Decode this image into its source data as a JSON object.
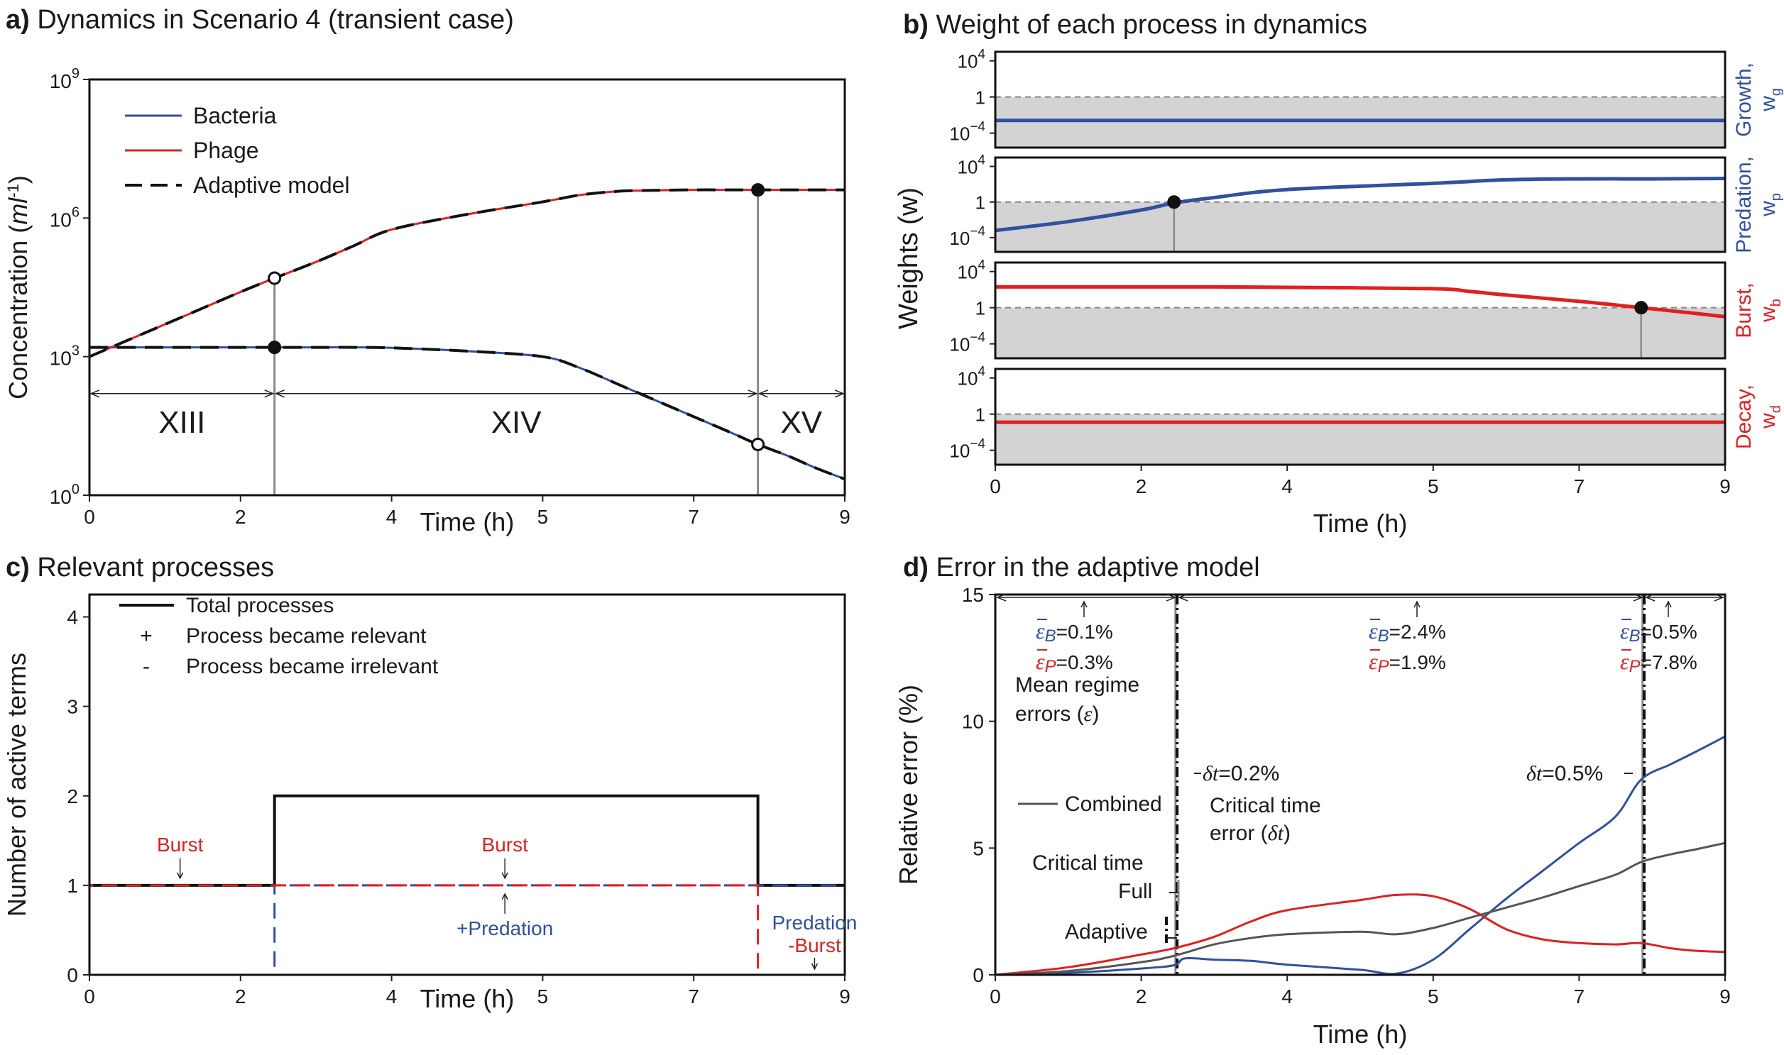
{
  "colors": {
    "bacteria": "#3050a0",
    "phage": "#e02020",
    "black": "#111111",
    "gray_line": "#555555",
    "shade": "#d3d3d3",
    "vline": "#8a8a8a"
  },
  "panels": {
    "a": {
      "letter": "a)",
      "title": "Dynamics in Scenario 4 (transient case)"
    },
    "b": {
      "letter": "b)",
      "title": "Weight of each process in dynamics"
    },
    "c": {
      "letter": "c)",
      "title": "Relevant processes"
    },
    "d": {
      "letter": "d)",
      "title": "Error in the adaptive model"
    }
  },
  "chart_data": [
    {
      "id": "a",
      "type": "line",
      "title": "Dynamics in Scenario 4 (transient case)",
      "xlabel": "Time (h)",
      "ylabel": "Concentration",
      "ylabel_unit": "ml",
      "ylabel_unit_exp": "-1",
      "y_scale": "log10",
      "xlim": [
        0,
        9
      ],
      "ylim_log10": [
        0,
        9
      ],
      "x_ticks": [
        0,
        2,
        4,
        5,
        7,
        9
      ],
      "y_ticks_log10": [
        0,
        3,
        6,
        9
      ],
      "y_tick_base": "10",
      "legend": [
        "Bacteria",
        "Phage",
        "Adaptive model"
      ],
      "series": [
        {
          "name": "Bacteria",
          "x": [
            0,
            0.5,
            1,
            1.5,
            2,
            2.45,
            3,
            3.5,
            4,
            4.5,
            5,
            5.5,
            6,
            6.5,
            7,
            7.5,
            7.85,
            8.25,
            8.6,
            9
          ],
          "log10_y": [
            3.2,
            3.2,
            3.2,
            3.2,
            3.2,
            3.2,
            3.2,
            3.2,
            3.19,
            3.12,
            3.0,
            2.75,
            2.4,
            2.05,
            1.7,
            1.35,
            1.1,
            0.85,
            0.6,
            0.35
          ]
        },
        {
          "name": "Phage",
          "x": [
            0,
            0.5,
            1,
            1.5,
            2,
            2.45,
            3,
            3.5,
            4,
            4.5,
            5,
            5.5,
            6,
            6.5,
            7,
            7.5,
            7.85,
            8.5,
            9
          ],
          "log10_y": [
            3.0,
            3.35,
            3.7,
            4.05,
            4.4,
            4.7,
            5.05,
            5.4,
            5.75,
            6.08,
            6.35,
            6.5,
            6.58,
            6.6,
            6.61,
            6.61,
            6.61,
            6.61,
            6.61
          ]
        }
      ],
      "markers": [
        {
          "x": 2.45,
          "log10_y": 4.7,
          "filled": false
        },
        {
          "x": 2.45,
          "log10_y": 3.2,
          "filled": true
        },
        {
          "x": 7.85,
          "log10_y": 6.61,
          "filled": true
        },
        {
          "x": 7.85,
          "log10_y": 1.1,
          "filled": false
        }
      ],
      "critical_times": [
        2.45,
        7.85
      ],
      "regimes": [
        {
          "label": "XIII",
          "start": 0,
          "end": 2.45
        },
        {
          "label": "XIV",
          "start": 2.45,
          "end": 7.85
        },
        {
          "label": "XV",
          "start": 7.85,
          "end": 9
        }
      ]
    },
    {
      "id": "b",
      "type": "line",
      "title": "Weight of each process in dynamics",
      "xlabel": "Time (h)",
      "ylabel": "Weights (w)",
      "y_scale": "log10",
      "xlim": [
        0,
        9
      ],
      "x_ticks": [
        0,
        2,
        4,
        5,
        7,
        9
      ],
      "y_tick_labels": [
        "10",
        "1",
        "10"
      ],
      "y_tick_exps": [
        "4",
        "",
        "−4"
      ],
      "subplots": [
        {
          "label": "Growth,",
          "symbol": "w",
          "subscript": "g",
          "color": "#3050a0",
          "x": [
            0,
            9
          ],
          "log10_y": [
            -2.6,
            -2.6
          ],
          "marker": null
        },
        {
          "label": "Predation,",
          "symbol": "w",
          "subscript": "p",
          "color": "#3050a0",
          "x": [
            0,
            1,
            2,
            2.45,
            3,
            4,
            5,
            6,
            7,
            8,
            9
          ],
          "log10_y": [
            -3.2,
            -2.2,
            -0.9,
            -0.1,
            0.5,
            1.4,
            2.1,
            2.5,
            2.6,
            2.6,
            2.65
          ],
          "marker": {
            "x": 2.45,
            "log10_y": 0
          }
        },
        {
          "label": "Burst,",
          "symbol": "w",
          "subscript": "b",
          "color": "#e02020",
          "x": [
            0,
            1,
            2,
            3,
            4,
            5,
            5.5,
            6,
            7,
            7.85,
            8.5,
            9
          ],
          "log10_y": [
            2.3,
            2.3,
            2.3,
            2.3,
            2.25,
            2.1,
            1.8,
            1.4,
            0.7,
            0.0,
            -0.55,
            -1.0
          ],
          "marker": {
            "x": 7.85,
            "log10_y": 0
          }
        },
        {
          "label": "Decay,",
          "symbol": "w",
          "subscript": "d",
          "color": "#e02020",
          "x": [
            0,
            9
          ],
          "log10_y": [
            -0.9,
            -0.9
          ],
          "marker": null
        }
      ],
      "threshold_log10": 0,
      "shaded_below_threshold": true
    },
    {
      "id": "c",
      "type": "line",
      "title": "Relevant processes",
      "xlabel": "Time (h)",
      "ylabel": "Number of active terms",
      "xlim": [
        0,
        9
      ],
      "ylim": [
        0,
        4
      ],
      "x_ticks": [
        0,
        2,
        4,
        5,
        7,
        9
      ],
      "y_ticks": [
        0,
        1,
        2,
        3,
        4
      ],
      "legend": [
        {
          "symbol": "",
          "label": "Total processes"
        },
        {
          "symbol": "+",
          "label": "Process became relevant"
        },
        {
          "symbol": "-",
          "label": "Process became irrelevant"
        }
      ],
      "series": [
        {
          "name": "Total processes",
          "x": [
            0,
            2.45,
            2.45,
            7.85,
            7.85,
            9
          ],
          "y": [
            1,
            1,
            2,
            2,
            1,
            1
          ]
        },
        {
          "name": "Bacteria",
          "x": [
            0,
            2.45,
            2.45,
            9
          ],
          "y": [
            0,
            0,
            1,
            1
          ]
        },
        {
          "name": "Phage",
          "x": [
            0,
            7.85,
            7.85,
            9
          ],
          "y": [
            1,
            1,
            0,
            0
          ]
        }
      ],
      "annotations": [
        {
          "lines": [
            "Burst"
          ],
          "x": 1.2,
          "y": 1.0,
          "color": "#e02020",
          "pos": "above"
        },
        {
          "lines": [
            "Burst"
          ],
          "x": 4.75,
          "y": 1.0,
          "color": "#e02020",
          "pos": "above"
        },
        {
          "lines": [
            "+Predation"
          ],
          "x": 4.75,
          "y": 1.0,
          "color": "#3050a0",
          "pos": "below"
        },
        {
          "lines": [
            "Predation",
            "-Burst"
          ],
          "x": 8.6,
          "y": 0.0,
          "colors": [
            "#3050a0",
            "#e02020"
          ],
          "pos": "above"
        }
      ]
    },
    {
      "id": "d",
      "type": "line",
      "title": "Error in the adaptive model",
      "xlabel": "Time (h)",
      "ylabel": "Relative error (%)",
      "xlim": [
        0,
        9
      ],
      "ylim": [
        0,
        15
      ],
      "x_ticks": [
        0,
        2,
        4,
        5,
        7,
        9
      ],
      "y_ticks": [
        0,
        5,
        10,
        15
      ],
      "series": [
        {
          "name": "Bacteria",
          "x": [
            0,
            1,
            2,
            2.45,
            2.6,
            3,
            3.5,
            4,
            4.5,
            4.75,
            5,
            5.5,
            6,
            6.5,
            7,
            7.5,
            7.85,
            8.25,
            8.6,
            9
          ],
          "y": [
            0,
            0.08,
            0.25,
            0.38,
            0.65,
            0.6,
            0.55,
            0.4,
            0.2,
            0.05,
            0.6,
            1.8,
            3.0,
            4.1,
            5.2,
            6.25,
            7.7,
            8.3,
            8.8,
            9.4
          ]
        },
        {
          "name": "Phage",
          "x": [
            0,
            1,
            2,
            2.45,
            3,
            3.5,
            4,
            4.5,
            4.75,
            5,
            5.5,
            6,
            6.5,
            7,
            7.5,
            7.85,
            8.25,
            8.6,
            9
          ],
          "y": [
            0,
            0.3,
            0.8,
            1.05,
            1.5,
            2.1,
            2.55,
            2.95,
            3.15,
            3.1,
            2.6,
            1.8,
            1.4,
            1.25,
            1.2,
            1.25,
            1.05,
            0.95,
            0.9
          ]
        },
        {
          "name": "Combined",
          "x": [
            0,
            1,
            2,
            2.45,
            3,
            3.5,
            4,
            4.5,
            4.75,
            5,
            5.5,
            6,
            6.5,
            7,
            7.5,
            7.85,
            8.25,
            8.6,
            9
          ],
          "y": [
            0,
            0.15,
            0.5,
            0.75,
            1.2,
            1.45,
            1.6,
            1.7,
            1.6,
            1.85,
            2.25,
            2.65,
            3.05,
            3.5,
            3.95,
            4.45,
            4.75,
            4.95,
            5.2
          ]
        }
      ],
      "critical_full": [
        2.45,
        7.85
      ],
      "critical_adaptive": [
        2.55,
        7.95
      ],
      "legend": [
        "Combined"
      ],
      "regime_errors": [
        {
          "eB": "=0.1%",
          "eP": "=0.3%"
        },
        {
          "eB": "=2.4%",
          "eP": "=1.9%"
        },
        {
          "eB": "=0.5%",
          "eP": "=7.8%"
        }
      ],
      "delta_t": [
        "=0.2%",
        "=0.5%"
      ],
      "text": {
        "mean_errors_1": "Mean regime",
        "mean_errors_2": "errors (",
        "crit_err_1": "Critical time",
        "crit_err_2": "error (",
        "crit_time": "Critical time",
        "full": "Full",
        "adaptive": "Adaptive",
        "epsilon": "ε",
        "delta": "δt",
        "close_paren": ")",
        "sub_B": "B",
        "sub_P": "P"
      }
    }
  ]
}
